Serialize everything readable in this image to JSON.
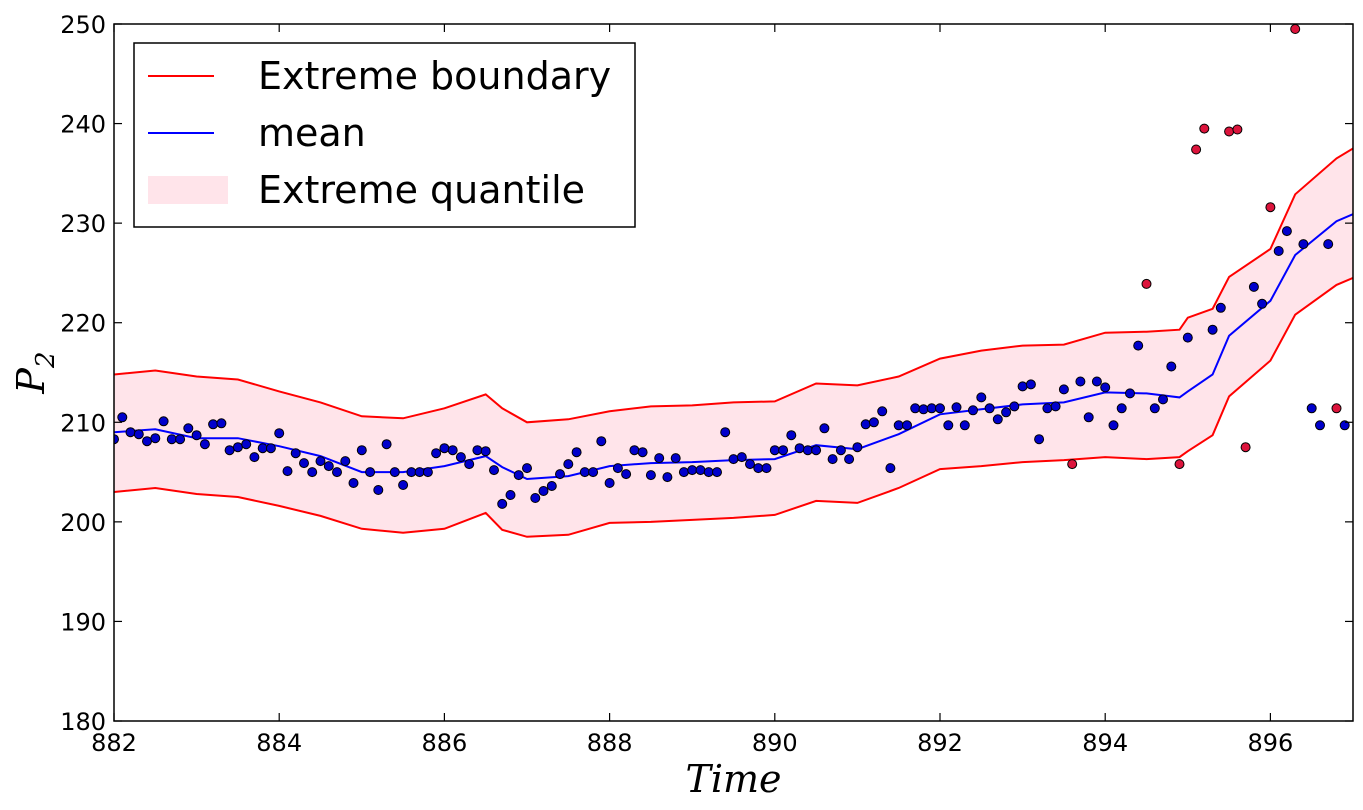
{
  "chart_data": {
    "type": "line",
    "xlabel": "Time",
    "ylabel": "P",
    "ylabel_subscript": "2",
    "xlim": [
      882,
      897
    ],
    "ylim": [
      180,
      250
    ],
    "xticks": [
      "882",
      "884",
      "886",
      "888",
      "890",
      "892",
      "894",
      "896"
    ],
    "yticks": [
      "180",
      "190",
      "200",
      "210",
      "220",
      "230",
      "240",
      "250"
    ],
    "grid": false,
    "legend_position": "top-left",
    "legend": [
      {
        "label": "Extreme boundary",
        "kind": "line",
        "color": "#ff0000"
      },
      {
        "label": "mean",
        "kind": "line",
        "color": "#0000ff"
      },
      {
        "label": "Extreme quantile",
        "kind": "patch",
        "color": "#ffe4ea"
      }
    ],
    "x": [
      882.0,
      882.5,
      883.0,
      883.5,
      884.0,
      884.5,
      885.0,
      885.5,
      886.0,
      886.5,
      886.7,
      887.0,
      887.5,
      888.0,
      888.5,
      889.0,
      889.5,
      890.0,
      890.5,
      891.0,
      891.5,
      892.0,
      892.5,
      893.0,
      893.5,
      894.0,
      894.5,
      894.9,
      895.0,
      895.3,
      895.5,
      896.0,
      896.3,
      896.8,
      897.0
    ],
    "series": [
      {
        "name": "Extreme boundary",
        "role": "upper",
        "color": "#ff0000",
        "values": [
          214.8,
          215.2,
          214.6,
          214.3,
          213.1,
          212.0,
          210.6,
          210.4,
          211.4,
          212.8,
          211.4,
          210.0,
          210.3,
          211.1,
          211.6,
          211.7,
          212.0,
          212.1,
          213.9,
          213.7,
          214.6,
          216.4,
          217.2,
          217.7,
          217.8,
          219.0,
          219.1,
          219.3,
          220.5,
          221.4,
          224.6,
          227.4,
          232.9,
          236.5,
          237.5
        ]
      },
      {
        "name": "mean",
        "role": "mean",
        "color": "#0000ff",
        "values": [
          209.0,
          209.3,
          208.4,
          208.4,
          207.6,
          206.6,
          205.0,
          205.0,
          205.6,
          206.6,
          205.5,
          204.3,
          204.6,
          205.6,
          205.9,
          206.0,
          206.2,
          206.3,
          207.7,
          207.3,
          208.8,
          210.8,
          211.3,
          211.8,
          212.0,
          213.0,
          212.9,
          212.5,
          213.1,
          214.8,
          218.7,
          222.2,
          226.8,
          230.2,
          230.9
        ]
      },
      {
        "name": "Extreme boundary",
        "role": "lower",
        "color": "#ff0000",
        "values": [
          203.0,
          203.4,
          202.8,
          202.5,
          201.6,
          200.6,
          199.3,
          198.9,
          199.3,
          200.9,
          199.2,
          198.5,
          198.7,
          199.9,
          200.0,
          200.2,
          200.4,
          200.7,
          202.1,
          201.9,
          203.4,
          205.3,
          205.6,
          206.0,
          206.2,
          206.5,
          206.3,
          206.5,
          207.1,
          208.7,
          212.6,
          216.2,
          220.8,
          223.8,
          224.5
        ]
      }
    ],
    "observations": {
      "x": [
        882.0,
        882.1,
        882.2,
        882.3,
        882.4,
        882.5,
        882.6,
        882.7,
        882.8,
        882.9,
        883.0,
        883.1,
        883.2,
        883.3,
        883.4,
        883.5,
        883.6,
        883.7,
        883.8,
        883.9,
        884.0,
        884.1,
        884.2,
        884.3,
        884.4,
        884.5,
        884.6,
        884.7,
        884.8,
        884.9,
        885.0,
        885.1,
        885.2,
        885.3,
        885.4,
        885.5,
        885.6,
        885.7,
        885.8,
        885.9,
        886.0,
        886.1,
        886.2,
        886.3,
        886.4,
        886.5,
        886.6,
        886.7,
        886.8,
        886.9,
        887.0,
        887.1,
        887.2,
        887.3,
        887.4,
        887.5,
        887.6,
        887.7,
        887.8,
        887.9,
        888.0,
        888.1,
        888.2,
        888.3,
        888.4,
        888.5,
        888.6,
        888.7,
        888.8,
        888.9,
        889.0,
        889.1,
        889.2,
        889.3,
        889.4,
        889.5,
        889.6,
        889.7,
        889.8,
        889.9,
        890.0,
        890.1,
        890.2,
        890.3,
        890.4,
        890.5,
        890.6,
        890.7,
        890.8,
        890.9,
        891.0,
        891.1,
        891.2,
        891.3,
        891.4,
        891.5,
        891.6,
        891.7,
        891.8,
        891.9,
        892.0,
        892.1,
        892.2,
        892.3,
        892.4,
        892.5,
        892.6,
        892.7,
        892.8,
        892.9,
        893.0,
        893.1,
        893.2,
        893.3,
        893.4,
        893.5,
        893.6,
        893.7,
        893.8,
        893.9,
        894.0,
        894.1,
        894.2,
        894.3,
        894.4,
        894.5,
        894.6,
        894.7,
        894.8,
        894.9,
        895.0,
        895.1,
        895.2,
        895.3,
        895.4,
        895.5,
        895.6,
        895.7,
        895.8,
        895.9,
        896.0,
        896.1,
        896.2,
        896.3,
        896.4,
        896.5,
        896.6,
        896.7,
        896.8,
        896.9
      ],
      "y": [
        208.3,
        210.5,
        209.0,
        208.8,
        208.1,
        208.4,
        210.1,
        208.3,
        208.3,
        209.4,
        208.7,
        207.8,
        209.8,
        209.9,
        207.2,
        207.5,
        207.8,
        206.5,
        207.4,
        207.4,
        208.9,
        205.1,
        206.9,
        205.9,
        205.0,
        206.1,
        205.6,
        205.0,
        206.1,
        203.9,
        207.2,
        205.0,
        203.2,
        207.8,
        205.0,
        203.7,
        205.0,
        205.0,
        205.0,
        206.9,
        207.4,
        207.2,
        206.5,
        205.8,
        207.2,
        207.1,
        205.2,
        201.8,
        202.7,
        204.7,
        205.4,
        202.4,
        203.1,
        203.6,
        204.8,
        205.8,
        207.0,
        205.0,
        205.0,
        208.1,
        203.9,
        205.4,
        204.8,
        207.2,
        207.0,
        204.7,
        206.4,
        204.5,
        206.4,
        205.0,
        205.2,
        205.2,
        205.0,
        205.0,
        209.0,
        206.3,
        206.5,
        205.8,
        205.4,
        205.4,
        207.2,
        207.2,
        208.7,
        207.4,
        207.2,
        207.2,
        209.4,
        206.3,
        207.2,
        206.3,
        207.5,
        209.8,
        210.0,
        211.1,
        205.4,
        209.7,
        209.7,
        211.4,
        211.3,
        211.4,
        211.4,
        209.7,
        211.5,
        209.7,
        211.2,
        212.5,
        211.4,
        210.3,
        211.0,
        211.6,
        213.6,
        213.8,
        208.3,
        211.4,
        211.6,
        213.3,
        205.8,
        214.1,
        210.5,
        214.1,
        213.5,
        209.7,
        211.4,
        212.9,
        217.7,
        223.9,
        211.4,
        212.3,
        215.6,
        205.8,
        218.5,
        237.4,
        239.5,
        219.3,
        221.5,
        239.2,
        239.4,
        207.5,
        223.6,
        221.9,
        231.6,
        227.2,
        229.2,
        249.5,
        227.9,
        211.4,
        209.7,
        227.9,
        211.4,
        209.7
      ],
      "outlier": [
        false,
        false,
        false,
        false,
        false,
        false,
        false,
        false,
        false,
        false,
        false,
        false,
        false,
        false,
        false,
        false,
        false,
        false,
        false,
        false,
        false,
        false,
        false,
        false,
        false,
        false,
        false,
        false,
        false,
        false,
        false,
        false,
        false,
        false,
        false,
        false,
        false,
        false,
        false,
        false,
        false,
        false,
        false,
        false,
        false,
        false,
        false,
        false,
        false,
        false,
        false,
        false,
        false,
        false,
        false,
        false,
        false,
        false,
        false,
        false,
        false,
        false,
        false,
        false,
        false,
        false,
        false,
        false,
        false,
        false,
        false,
        false,
        false,
        false,
        false,
        false,
        false,
        false,
        false,
        false,
        false,
        false,
        false,
        false,
        false,
        false,
        false,
        false,
        false,
        false,
        false,
        false,
        false,
        false,
        false,
        false,
        false,
        false,
        false,
        false,
        false,
        false,
        false,
        false,
        false,
        false,
        false,
        false,
        false,
        false,
        false,
        false,
        false,
        false,
        false,
        false,
        true,
        false,
        false,
        false,
        false,
        false,
        false,
        false,
        false,
        true,
        false,
        false,
        false,
        true,
        false,
        true,
        true,
        false,
        false,
        true,
        true,
        true,
        false,
        false,
        true,
        false,
        false,
        true,
        false,
        false,
        false,
        false,
        true,
        false
      ],
      "normal_color": "#0000cc",
      "outlier_color": "#dc143c"
    }
  }
}
